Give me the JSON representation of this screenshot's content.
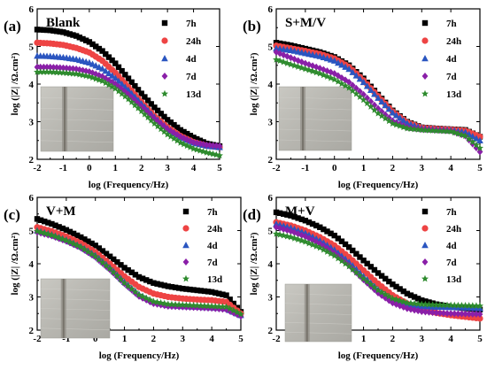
{
  "figure": {
    "panels_letters": [
      "(a)",
      "(b)",
      "(c)",
      "(d)"
    ],
    "inset_photo": "specimen-photo"
  },
  "chart_data": [
    {
      "panel": "(a)",
      "title": "Blank",
      "type": "scatter",
      "xlabel": "log (Frequency/Hz)",
      "ylabel": "log (|Z| /Ω.cm²)",
      "xlim": [
        -2,
        5
      ],
      "ylim": [
        2,
        6
      ],
      "xticks": [
        "-2",
        "-1",
        "0",
        "1",
        "2",
        "3",
        "4",
        "5"
      ],
      "yticks": [
        "2",
        "3",
        "4",
        "5",
        "6"
      ],
      "legend": "top-right",
      "series": [
        {
          "name": "7h",
          "color": "#000000",
          "marker": "square",
          "x": [
            -2,
            -1.5,
            -1,
            -0.5,
            0,
            0.5,
            1,
            1.5,
            2,
            2.5,
            3,
            3.5,
            4,
            4.5,
            5
          ],
          "y": [
            5.45,
            5.43,
            5.38,
            5.28,
            5.12,
            4.88,
            4.55,
            4.15,
            3.75,
            3.38,
            3.05,
            2.78,
            2.58,
            2.42,
            2.35
          ]
        },
        {
          "name": "24h",
          "color": "#ee4444",
          "marker": "circle",
          "x": [
            -2,
            -1.5,
            -1,
            -0.5,
            0,
            0.5,
            1,
            1.5,
            2,
            2.5,
            3,
            3.5,
            4,
            4.5,
            5
          ],
          "y": [
            5.1,
            5.08,
            5.04,
            4.96,
            4.84,
            4.62,
            4.3,
            3.92,
            3.52,
            3.15,
            2.85,
            2.62,
            2.46,
            2.36,
            2.32
          ]
        },
        {
          "name": "4d",
          "color": "#2a55c0",
          "marker": "triangle",
          "x": [
            -2,
            -1.5,
            -1,
            -0.5,
            0,
            0.5,
            1,
            1.5,
            2,
            2.5,
            3,
            3.5,
            4,
            4.5,
            5
          ],
          "y": [
            4.75,
            4.74,
            4.71,
            4.66,
            4.57,
            4.41,
            4.16,
            3.84,
            3.48,
            3.12,
            2.82,
            2.6,
            2.44,
            2.36,
            2.32
          ]
        },
        {
          "name": "7d",
          "color": "#8a1fa8",
          "marker": "diamond",
          "x": [
            -2,
            -1.5,
            -1,
            -0.5,
            0,
            0.5,
            1,
            1.5,
            2,
            2.5,
            3,
            3.5,
            4,
            4.5,
            5
          ],
          "y": [
            4.45,
            4.45,
            4.43,
            4.4,
            4.33,
            4.2,
            4.0,
            3.72,
            3.4,
            3.08,
            2.8,
            2.6,
            2.45,
            2.38,
            2.35
          ]
        },
        {
          "name": "13d",
          "color": "#2e8b2e",
          "marker": "star",
          "x": [
            -2,
            -1.5,
            -1,
            -0.5,
            0,
            0.5,
            1,
            1.5,
            2,
            2.5,
            3,
            3.5,
            4,
            4.5,
            5
          ],
          "y": [
            4.32,
            4.32,
            4.3,
            4.27,
            4.2,
            4.08,
            3.88,
            3.6,
            3.28,
            2.95,
            2.66,
            2.44,
            2.28,
            2.18,
            2.1
          ]
        }
      ]
    },
    {
      "panel": "(b)",
      "title": "S+M/V",
      "type": "scatter",
      "xlabel": "log (Frequency/Hz)",
      "ylabel": "log (|Z| /Ω.cm²)",
      "xlim": [
        -2,
        5
      ],
      "ylim": [
        2,
        6
      ],
      "xticks": [
        "-2",
        "-1",
        "0",
        "1",
        "2",
        "3",
        "4",
        "5"
      ],
      "yticks": [
        "2",
        "3",
        "4",
        "5",
        "6"
      ],
      "legend": "top-right",
      "series": [
        {
          "name": "7h",
          "color": "#000000",
          "marker": "square",
          "x": [
            -2,
            -1.5,
            -1,
            -0.5,
            0,
            0.5,
            1,
            1.5,
            2,
            2.5,
            3,
            3.5,
            4,
            4.5,
            5
          ],
          "y": [
            5.1,
            5.03,
            4.94,
            4.85,
            4.72,
            4.5,
            4.15,
            3.72,
            3.3,
            3.0,
            2.85,
            2.82,
            2.8,
            2.78,
            2.6
          ]
        },
        {
          "name": "24h",
          "color": "#ee4444",
          "marker": "circle",
          "x": [
            -2,
            -1.5,
            -1,
            -0.5,
            0,
            0.5,
            1,
            1.5,
            2,
            2.5,
            3,
            3.5,
            4,
            4.5,
            5
          ],
          "y": [
            5.02,
            4.95,
            4.88,
            4.8,
            4.68,
            4.46,
            4.1,
            3.68,
            3.27,
            2.98,
            2.84,
            2.81,
            2.79,
            2.76,
            2.6
          ]
        },
        {
          "name": "4d",
          "color": "#2a55c0",
          "marker": "triangle",
          "x": [
            -2,
            -1.5,
            -1,
            -0.5,
            0,
            0.5,
            1,
            1.5,
            2,
            2.5,
            3,
            3.5,
            4,
            4.5,
            5
          ],
          "y": [
            4.95,
            4.9,
            4.82,
            4.74,
            4.62,
            4.4,
            4.05,
            3.63,
            3.24,
            2.96,
            2.83,
            2.8,
            2.78,
            2.72,
            2.5
          ]
        },
        {
          "name": "7d",
          "color": "#8a1fa8",
          "marker": "diamond",
          "x": [
            -2,
            -1.5,
            -1,
            -0.5,
            0,
            0.5,
            1,
            1.5,
            2,
            2.5,
            3,
            3.5,
            4,
            4.5,
            5
          ],
          "y": [
            4.85,
            4.7,
            4.55,
            4.42,
            4.28,
            4.05,
            3.72,
            3.35,
            3.02,
            2.85,
            2.8,
            2.78,
            2.76,
            2.62,
            2.2
          ]
        },
        {
          "name": "13d",
          "color": "#2e8b2e",
          "marker": "star",
          "x": [
            -2,
            -1.5,
            -1,
            -0.5,
            0,
            0.5,
            1,
            1.5,
            2,
            2.5,
            3,
            3.5,
            4,
            4.5,
            5
          ],
          "y": [
            4.65,
            4.52,
            4.4,
            4.28,
            4.12,
            3.9,
            3.58,
            3.22,
            2.95,
            2.82,
            2.78,
            2.76,
            2.74,
            2.62,
            2.3
          ]
        }
      ]
    },
    {
      "panel": "(c)",
      "title": "V+M",
      "type": "scatter",
      "xlabel": "log (Frequency/Hz)",
      "ylabel": "log (|Z| /Ω.cm²)",
      "xlim": [
        -2,
        5
      ],
      "ylim": [
        2,
        6
      ],
      "xticks": [
        "-2",
        "-1",
        "0",
        "1",
        "2",
        "3",
        "4",
        "5"
      ],
      "yticks": [
        "2",
        "3",
        "4",
        "5",
        "6"
      ],
      "legend": "top-right",
      "series": [
        {
          "name": "7h",
          "color": "#000000",
          "marker": "square",
          "x": [
            -2,
            -1.5,
            -1,
            -0.5,
            0,
            0.5,
            1,
            1.5,
            2,
            2.5,
            3,
            3.5,
            4,
            4.5,
            5
          ],
          "y": [
            5.35,
            5.2,
            5.02,
            4.8,
            4.55,
            4.22,
            3.88,
            3.6,
            3.42,
            3.32,
            3.25,
            3.2,
            3.15,
            3.05,
            2.55
          ]
        },
        {
          "name": "24h",
          "color": "#ee4444",
          "marker": "circle",
          "x": [
            -2,
            -1.5,
            -1,
            -0.5,
            0,
            0.5,
            1,
            1.5,
            2,
            2.5,
            3,
            3.5,
            4,
            4.5,
            5
          ],
          "y": [
            5.1,
            4.98,
            4.82,
            4.62,
            4.35,
            4.0,
            3.62,
            3.3,
            3.1,
            3.0,
            2.95,
            2.92,
            2.9,
            2.85,
            2.5
          ]
        },
        {
          "name": "4d",
          "color": "#2a55c0",
          "marker": "triangle",
          "x": [
            -2,
            -1.5,
            -1,
            -0.5,
            0,
            0.5,
            1,
            1.5,
            2,
            2.5,
            3,
            3.5,
            4,
            4.5,
            5
          ],
          "y": [
            5.0,
            4.88,
            4.72,
            4.52,
            4.25,
            3.88,
            3.45,
            3.08,
            2.85,
            2.75,
            2.72,
            2.7,
            2.68,
            2.65,
            2.45
          ]
        },
        {
          "name": "7d",
          "color": "#8a1fa8",
          "marker": "diamond",
          "x": [
            -2,
            -1.5,
            -1,
            -0.5,
            0,
            0.5,
            1,
            1.5,
            2,
            2.5,
            3,
            3.5,
            4,
            4.5,
            5
          ],
          "y": [
            4.95,
            4.84,
            4.68,
            4.48,
            4.2,
            3.82,
            3.4,
            3.02,
            2.8,
            2.72,
            2.7,
            2.68,
            2.66,
            2.62,
            2.42
          ]
        },
        {
          "name": "13d",
          "color": "#2e8b2e",
          "marker": "star",
          "x": [
            -2,
            -1.5,
            -1,
            -0.5,
            0,
            0.5,
            1,
            1.5,
            2,
            2.5,
            3,
            3.5,
            4,
            4.5,
            5
          ],
          "y": [
            4.98,
            4.86,
            4.7,
            4.5,
            4.22,
            3.85,
            3.42,
            3.06,
            2.86,
            2.78,
            2.76,
            2.74,
            2.72,
            2.7,
            2.48
          ]
        }
      ]
    },
    {
      "panel": "(d)",
      "title": "M+V",
      "type": "scatter",
      "xlabel": "log (Frequency/Hz)",
      "ylabel": "log (|Z| /Ω.cm²)",
      "xlim": [
        -2,
        5
      ],
      "ylim": [
        2,
        6
      ],
      "xticks": [
        "-2",
        "-1",
        "0",
        "1",
        "2",
        "3",
        "4",
        "5"
      ],
      "yticks": [
        "2",
        "3",
        "4",
        "5",
        "6"
      ],
      "legend": "top-right",
      "series": [
        {
          "name": "7h",
          "color": "#000000",
          "marker": "square",
          "x": [
            -2,
            -1.5,
            -1,
            -0.5,
            0,
            0.5,
            1,
            1.5,
            2,
            2.5,
            3,
            3.5,
            4,
            4.5,
            5
          ],
          "y": [
            5.55,
            5.45,
            5.3,
            5.1,
            4.85,
            4.5,
            4.1,
            3.72,
            3.38,
            3.1,
            2.9,
            2.78,
            2.7,
            2.66,
            2.62
          ]
        },
        {
          "name": "24h",
          "color": "#ee4444",
          "marker": "circle",
          "x": [
            -2,
            -1.5,
            -1,
            -0.5,
            0,
            0.5,
            1,
            1.5,
            2,
            2.5,
            3,
            3.5,
            4,
            4.5,
            5
          ],
          "y": [
            5.25,
            5.15,
            5.0,
            4.8,
            4.55,
            4.2,
            3.8,
            3.4,
            3.05,
            2.8,
            2.62,
            2.52,
            2.45,
            2.4,
            2.35
          ]
        },
        {
          "name": "4d",
          "color": "#2a55c0",
          "marker": "triangle",
          "x": [
            -2,
            -1.5,
            -1,
            -0.5,
            0,
            0.5,
            1,
            1.5,
            2,
            2.5,
            3,
            3.5,
            4,
            4.5,
            5
          ],
          "y": [
            5.2,
            5.08,
            4.92,
            4.7,
            4.42,
            4.05,
            3.62,
            3.22,
            2.92,
            2.78,
            2.72,
            2.7,
            2.69,
            2.68,
            2.66
          ]
        },
        {
          "name": "7d",
          "color": "#8a1fa8",
          "marker": "diamond",
          "x": [
            -2,
            -1.5,
            -1,
            -0.5,
            0,
            0.5,
            1,
            1.5,
            2,
            2.5,
            3,
            3.5,
            4,
            4.5,
            5
          ],
          "y": [
            5.1,
            4.98,
            4.82,
            4.6,
            4.32,
            3.95,
            3.52,
            3.12,
            2.82,
            2.65,
            2.56,
            2.52,
            2.5,
            2.49,
            2.48
          ]
        },
        {
          "name": "13d",
          "color": "#2e8b2e",
          "marker": "star",
          "x": [
            -2,
            -1.5,
            -1,
            -0.5,
            0,
            0.5,
            1,
            1.5,
            2,
            2.5,
            3,
            3.5,
            4,
            4.5,
            5
          ],
          "y": [
            4.9,
            4.8,
            4.66,
            4.48,
            4.24,
            3.92,
            3.55,
            3.2,
            2.95,
            2.82,
            2.78,
            2.76,
            2.75,
            2.74,
            2.73
          ]
        }
      ]
    }
  ]
}
